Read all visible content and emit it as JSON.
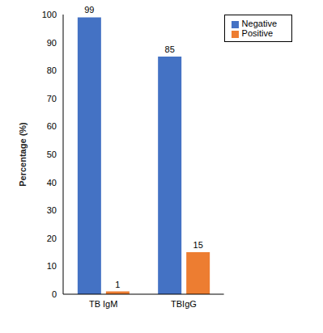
{
  "chart_data": {
    "type": "bar",
    "y_label": "Percentage (%)",
    "categories": [
      "TB IgM",
      "TBIgG"
    ],
    "series": [
      {
        "name": "Negative",
        "color": "#4472c4",
        "values": [
          99,
          85
        ]
      },
      {
        "name": "Positive",
        "color": "#ed7d31",
        "values": [
          1,
          15
        ]
      }
    ],
    "ylim": [
      0,
      100
    ],
    "yticks": [
      0,
      10,
      20,
      30,
      40,
      50,
      60,
      70,
      80,
      90,
      100
    ],
    "grid": false,
    "legend": "upper right",
    "data_labels": true
  }
}
